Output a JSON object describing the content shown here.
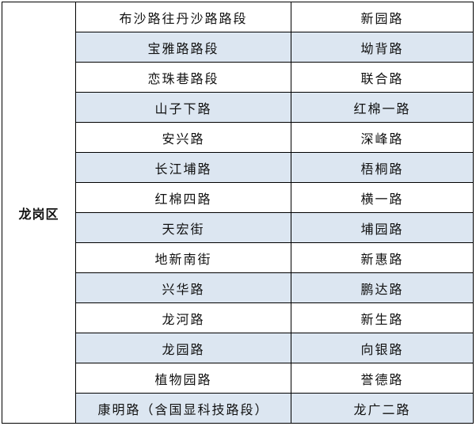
{
  "district": "龙岗区",
  "colors": {
    "stripe": "#DCE6F1",
    "border": "#000000"
  },
  "rows": [
    [
      "布沙路往丹沙路路段",
      "新园路"
    ],
    [
      "宝雅路路段",
      "坳背路"
    ],
    [
      "恋珠巷路段",
      "联合路"
    ],
    [
      "山子下路",
      "红棉一路"
    ],
    [
      "安兴路",
      "深峰路"
    ],
    [
      "长江埔路",
      "梧桐路"
    ],
    [
      "红棉四路",
      "横一路"
    ],
    [
      "天宏街",
      "埔园路"
    ],
    [
      "地新南街",
      "新惠路"
    ],
    [
      "兴华路",
      "鹏达路"
    ],
    [
      "龙河路",
      "新生路"
    ],
    [
      "龙园路",
      "向银路"
    ],
    [
      "植物园路",
      "誉德路"
    ],
    [
      "康明路（含国显科技路段）",
      "龙广二路"
    ]
  ]
}
